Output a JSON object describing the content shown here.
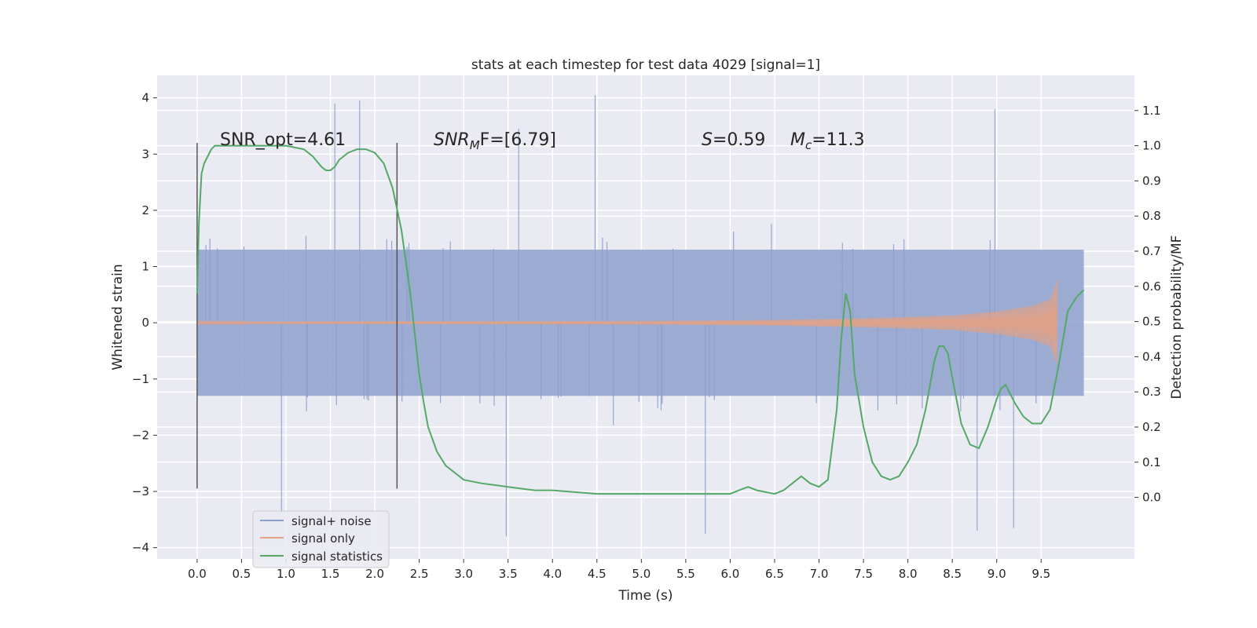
{
  "chart_data": {
    "type": "line",
    "title": "stats at each timestep for test data 4029 [signal=1]",
    "xlabel": "Time (s)",
    "ylabel": "Whitened strain",
    "y2label": "Detection probability/MF",
    "xlim": [
      -0.45,
      10.55
    ],
    "ylim": [
      -4.2,
      4.4
    ],
    "y2lim": [
      -0.175,
      1.2
    ],
    "xticks": [
      0.0,
      0.5,
      1.0,
      1.5,
      2.0,
      2.5,
      3.0,
      3.5,
      4.0,
      4.5,
      5.0,
      5.5,
      6.0,
      6.5,
      7.0,
      7.5,
      8.0,
      8.5,
      9.0,
      9.5
    ],
    "xtick_labels": [
      "0.0",
      "0.5",
      "1.0",
      "1.5",
      "2.0",
      "2.5",
      "3.0",
      "3.5",
      "4.0",
      "4.5",
      "5.0",
      "5.5",
      "6.0",
      "6.5",
      "7.0",
      "7.5",
      "8.0",
      "8.5",
      "9.0",
      "9.5"
    ],
    "yticks": [
      -4,
      -3,
      -2,
      -1,
      0,
      1,
      2,
      3,
      4
    ],
    "ytick_labels": [
      "−4",
      "−3",
      "−2",
      "−1",
      "0",
      "1",
      "2",
      "3",
      "4"
    ],
    "y2ticks": [
      0.0,
      0.1,
      0.2,
      0.3,
      0.4,
      0.5,
      0.6,
      0.7,
      0.8,
      0.9,
      1.0,
      1.1
    ],
    "y2tick_labels": [
      "0.0",
      "0.1",
      "0.2",
      "0.3",
      "0.4",
      "0.5",
      "0.6",
      "0.7",
      "0.8",
      "0.9",
      "1.0",
      "1.1"
    ],
    "grid": true,
    "legend_position": "lower-left",
    "legend": [
      "signal+ noise",
      "signal only",
      "signal statistics"
    ],
    "colors": {
      "noise": "#8da0cb",
      "signal": "#e5a183",
      "statistics": "#55a868",
      "marker": "#555555",
      "background": "#eaeaf2"
    },
    "annotations": {
      "snr_opt": "SNR_opt=4.61",
      "snr_mf_base": "SNR",
      "snr_mf_sub": "M",
      "snr_mf_tail": "F=[6.79]",
      "s_label": "S",
      "s_value": "=0.59",
      "mc_base": "M",
      "mc_sub": "c",
      "mc_value": "=11.3"
    },
    "window_markers": [
      0.0,
      2.25
    ],
    "series": [
      {
        "name": "signal+ noise",
        "axis": "left",
        "kind": "dense-noise",
        "x_range": [
          0.0,
          9.98
        ],
        "core_amplitude": 1.3,
        "spike_peaks": [
          [
            0.95,
            -3.4
          ],
          [
            1.55,
            3.9
          ],
          [
            1.83,
            3.95
          ],
          [
            3.48,
            -3.8
          ],
          [
            3.62,
            3.45
          ],
          [
            4.48,
            4.05
          ],
          [
            5.72,
            -3.75
          ],
          [
            8.78,
            -3.7
          ],
          [
            8.98,
            3.8
          ],
          [
            9.19,
            -3.65
          ]
        ]
      },
      {
        "name": "signal only",
        "axis": "left",
        "kind": "chirp",
        "x_range": [
          0.0,
          9.68
        ],
        "envelope": [
          [
            0.0,
            0.02
          ],
          [
            5.0,
            0.03
          ],
          [
            6.5,
            0.05
          ],
          [
            7.5,
            0.08
          ],
          [
            8.5,
            0.13
          ],
          [
            9.0,
            0.2
          ],
          [
            9.4,
            0.3
          ],
          [
            9.6,
            0.42
          ],
          [
            9.68,
            0.75
          ]
        ]
      },
      {
        "name": "signal statistics",
        "axis": "right",
        "x": [
          0.0,
          0.02,
          0.05,
          0.08,
          0.12,
          0.16,
          0.2,
          0.3,
          0.5,
          0.8,
          1.0,
          1.2,
          1.3,
          1.4,
          1.45,
          1.5,
          1.55,
          1.6,
          1.7,
          1.8,
          1.9,
          2.0,
          2.1,
          2.2,
          2.3,
          2.4,
          2.5,
          2.55,
          2.6,
          2.7,
          2.8,
          2.9,
          3.0,
          3.2,
          3.5,
          3.8,
          4.0,
          4.5,
          5.0,
          5.5,
          5.8,
          6.0,
          6.1,
          6.2,
          6.3,
          6.5,
          6.6,
          6.7,
          6.75,
          6.8,
          6.9,
          7.0,
          7.1,
          7.2,
          7.25,
          7.3,
          7.35,
          7.4,
          7.5,
          7.6,
          7.7,
          7.8,
          7.9,
          8.0,
          8.1,
          8.2,
          8.3,
          8.35,
          8.4,
          8.45,
          8.5,
          8.6,
          8.7,
          8.8,
          8.9,
          9.0,
          9.05,
          9.1,
          9.2,
          9.3,
          9.4,
          9.5,
          9.6,
          9.7,
          9.8,
          9.9,
          9.98
        ],
        "values": [
          0.58,
          0.78,
          0.92,
          0.95,
          0.97,
          0.99,
          1.0,
          1.0,
          1.0,
          1.0,
          1.0,
          0.99,
          0.97,
          0.94,
          0.93,
          0.93,
          0.94,
          0.96,
          0.98,
          0.99,
          0.99,
          0.98,
          0.95,
          0.88,
          0.76,
          0.58,
          0.35,
          0.27,
          0.2,
          0.13,
          0.09,
          0.07,
          0.05,
          0.04,
          0.03,
          0.02,
          0.02,
          0.01,
          0.01,
          0.01,
          0.01,
          0.01,
          0.02,
          0.03,
          0.02,
          0.01,
          0.02,
          0.04,
          0.05,
          0.06,
          0.04,
          0.03,
          0.05,
          0.25,
          0.45,
          0.58,
          0.53,
          0.35,
          0.2,
          0.1,
          0.06,
          0.05,
          0.06,
          0.1,
          0.15,
          0.25,
          0.39,
          0.43,
          0.43,
          0.41,
          0.34,
          0.21,
          0.15,
          0.14,
          0.2,
          0.28,
          0.31,
          0.32,
          0.27,
          0.23,
          0.21,
          0.21,
          0.25,
          0.38,
          0.53,
          0.57,
          0.59
        ]
      }
    ]
  }
}
